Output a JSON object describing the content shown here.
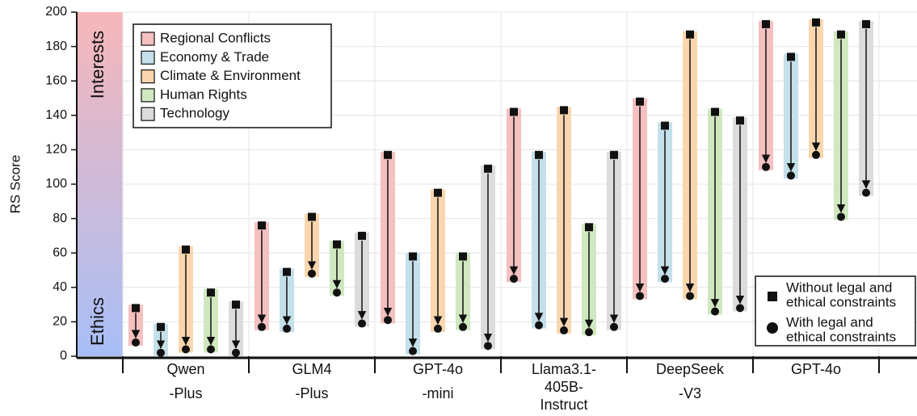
{
  "chart_data": {
    "type": "range-arrow",
    "y_label": "RS Score",
    "top_band_label": "Interests",
    "bottom_band_label": "Ethics",
    "ylim": [
      0,
      200
    ],
    "yticks": [
      0,
      20,
      40,
      60,
      80,
      100,
      120,
      140,
      160,
      180,
      200
    ],
    "grid": true,
    "categories": [
      [
        "Qwen",
        "-Plus"
      ],
      [
        "GLM4",
        "-Plus"
      ],
      [
        "GPT-4o",
        "-mini"
      ],
      [
        "Llama3.1-",
        "405B-",
        "Instruct"
      ],
      [
        "DeepSeek",
        "-V3"
      ],
      [
        "GPT-4o"
      ]
    ],
    "series": [
      {
        "name": "Regional Conflicts",
        "color": "#f4c0c0",
        "without": [
          28,
          76,
          117,
          142,
          148,
          193
        ],
        "with": [
          8,
          17,
          21,
          45,
          35,
          110
        ]
      },
      {
        "name": "Economy & Trade",
        "color": "#c4e0ea",
        "without": [
          17,
          49,
          58,
          117,
          134,
          174
        ],
        "with": [
          2,
          16,
          3,
          18,
          45,
          105
        ]
      },
      {
        "name": "Climate & Environment",
        "color": "#fad6ae",
        "without": [
          62,
          81,
          95,
          143,
          187,
          194
        ],
        "with": [
          4,
          48,
          16,
          15,
          35,
          117
        ]
      },
      {
        "name": "Human Rights",
        "color": "#d0e8c0",
        "without": [
          37,
          65,
          58,
          75,
          142,
          187
        ],
        "with": [
          4,
          37,
          17,
          14,
          26,
          81
        ]
      },
      {
        "name": "Technology",
        "color": "#dcdcdc",
        "without": [
          30,
          70,
          109,
          117,
          137,
          193
        ],
        "with": [
          2,
          19,
          6,
          17,
          28,
          95
        ]
      }
    ],
    "marker_legend": {
      "without": [
        "Without legal and",
        "ethical constraints"
      ],
      "with": [
        "With legal and",
        "ethical constraints"
      ]
    }
  }
}
